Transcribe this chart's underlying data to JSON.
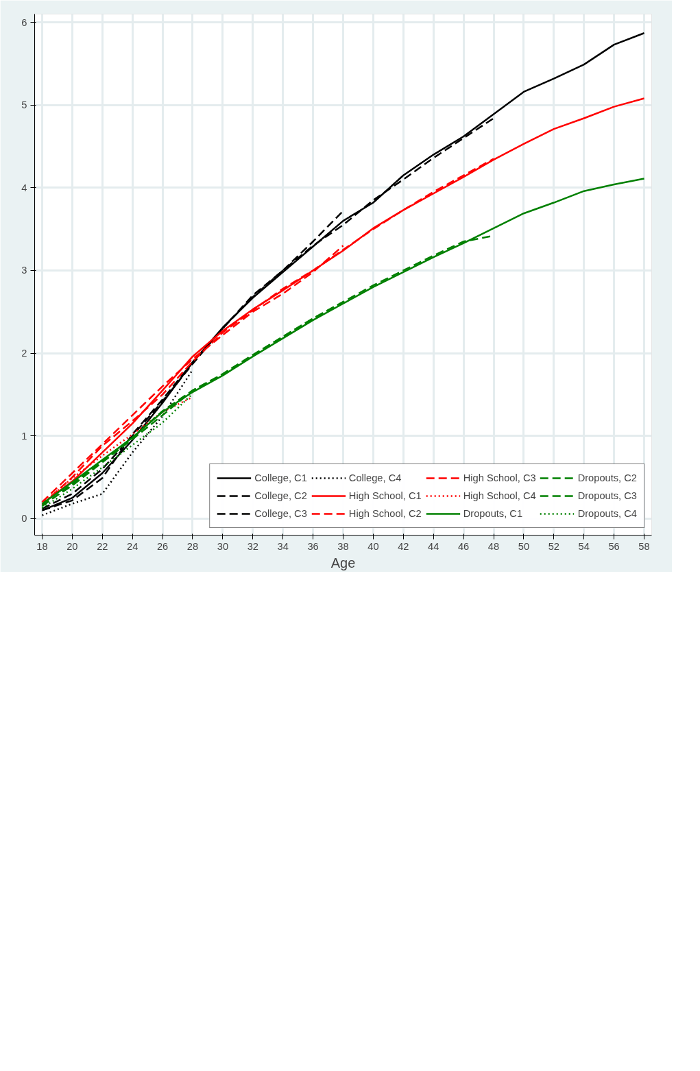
{
  "chart_data": {
    "type": "line",
    "xlabel": "Age",
    "xlim": [
      17.5,
      58.5
    ],
    "ylim": [
      -0.2,
      6.1
    ],
    "xticks": [
      18,
      20,
      22,
      24,
      26,
      28,
      30,
      32,
      34,
      36,
      38,
      40,
      42,
      44,
      46,
      48,
      50,
      52,
      54,
      56,
      58
    ],
    "yticks": [
      0,
      1,
      2,
      3,
      4,
      5,
      6
    ],
    "grid": true,
    "legend": "bottom right",
    "series": [
      {
        "name": "College, C1",
        "color": "#000000",
        "line_style": "solid",
        "x": [
          18,
          20,
          22,
          24,
          26,
          28,
          30,
          32,
          34,
          36,
          38,
          40,
          42,
          44,
          46,
          48,
          50,
          52,
          54,
          56,
          58
        ],
        "values": [
          0.1,
          0.25,
          0.55,
          0.95,
          1.4,
          1.89,
          2.31,
          2.67,
          2.98,
          3.29,
          3.6,
          3.82,
          4.15,
          4.4,
          4.62,
          4.89,
          5.16,
          5.32,
          5.49,
          5.73,
          5.87
        ]
      },
      {
        "name": "College, C2",
        "color": "#000000",
        "line_style": "dashed",
        "x": [
          18,
          20,
          22,
          24,
          26,
          28,
          30,
          32,
          34,
          36,
          38,
          40,
          42,
          44,
          46,
          48
        ],
        "values": [
          0.12,
          0.3,
          0.6,
          1.0,
          1.42,
          1.87,
          2.3,
          2.68,
          3.0,
          3.3,
          3.55,
          3.85,
          4.1,
          4.36,
          4.6,
          4.84
        ]
      },
      {
        "name": "College, C3",
        "color": "#000000",
        "line_style": "dashed",
        "x": [
          18,
          20,
          22,
          24,
          26,
          28,
          30,
          32,
          34,
          36,
          38
        ],
        "values": [
          0.1,
          0.22,
          0.49,
          1.02,
          1.44,
          1.89,
          2.3,
          2.7,
          3.0,
          3.35,
          3.72
        ]
      },
      {
        "name": "College, C4",
        "color": "#000000",
        "line_style": "dotted",
        "x": [
          18,
          20,
          22,
          24,
          26,
          28
        ],
        "values": [
          0.04,
          0.18,
          0.3,
          0.8,
          1.24,
          1.8
        ]
      },
      {
        "name": "High School, C1",
        "color": "#ff0000",
        "line_style": "solid",
        "x": [
          18,
          20,
          22,
          24,
          26,
          28,
          30,
          32,
          34,
          36,
          38,
          40,
          42,
          44,
          46,
          48,
          50,
          52,
          54,
          56,
          58
        ],
        "values": [
          0.18,
          0.45,
          0.8,
          1.15,
          1.55,
          1.96,
          2.27,
          2.53,
          2.76,
          3.0,
          3.24,
          3.51,
          3.73,
          3.93,
          4.13,
          4.34,
          4.53,
          4.71,
          4.84,
          4.98,
          5.08
        ]
      },
      {
        "name": "High School, C2",
        "color": "#ff0000",
        "line_style": "dashed",
        "x": [
          18,
          20,
          22,
          24,
          26,
          28,
          30,
          32,
          34,
          36,
          38,
          40,
          42,
          44,
          46,
          48
        ],
        "values": [
          0.17,
          0.5,
          0.88,
          1.18,
          1.5,
          1.9,
          2.25,
          2.52,
          2.78,
          3.0,
          3.25,
          3.5,
          3.73,
          3.95,
          4.15,
          4.35
        ]
      },
      {
        "name": "High School, C3",
        "color": "#ff0000",
        "line_style": "dashed",
        "x": [
          18,
          20,
          22,
          24,
          26,
          28,
          30,
          32,
          34,
          36,
          38
        ],
        "values": [
          0.2,
          0.55,
          0.9,
          1.25,
          1.6,
          1.93,
          2.22,
          2.5,
          2.72,
          2.98,
          3.3
        ]
      },
      {
        "name": "High School, C4",
        "color": "#ff0000",
        "line_style": "dotted",
        "x": [
          18,
          20,
          22,
          24,
          26,
          28
        ],
        "values": [
          0.18,
          0.49,
          0.76,
          1.02,
          1.29,
          1.47
        ]
      },
      {
        "name": "Dropouts, C1",
        "color": "#008000",
        "line_style": "solid",
        "x": [
          18,
          20,
          22,
          24,
          26,
          28,
          30,
          32,
          34,
          36,
          38,
          40,
          42,
          44,
          46,
          48,
          50,
          52,
          54,
          56,
          58
        ],
        "values": [
          0.18,
          0.44,
          0.71,
          0.98,
          1.29,
          1.53,
          1.73,
          1.96,
          2.18,
          2.4,
          2.6,
          2.8,
          2.98,
          3.16,
          3.33,
          3.51,
          3.69,
          3.82,
          3.96,
          4.04,
          4.11
        ]
      },
      {
        "name": "Dropouts, C2",
        "color": "#008000",
        "line_style": "dashed",
        "x": [
          18,
          20,
          22,
          24,
          26,
          28,
          30,
          32,
          34,
          36,
          38,
          40,
          42,
          44,
          46,
          48
        ],
        "values": [
          0.15,
          0.42,
          0.7,
          0.98,
          1.3,
          1.55,
          1.75,
          1.98,
          2.2,
          2.42,
          2.62,
          2.82,
          3.0,
          3.18,
          3.35,
          3.42
        ]
      },
      {
        "name": "Dropouts, C3",
        "color": "#008000",
        "line_style": "dashed",
        "x": [
          18,
          20,
          22,
          24,
          26,
          28,
          30,
          32,
          34,
          36,
          38
        ],
        "values": [
          0.16,
          0.4,
          0.68,
          0.96,
          1.25,
          1.55,
          1.74,
          1.97,
          2.2,
          2.42,
          2.62
        ]
      },
      {
        "name": "Dropouts, C4",
        "color": "#008000",
        "line_style": "dotted",
        "x": [
          18,
          20,
          22,
          24,
          26,
          28
        ],
        "values": [
          0.13,
          0.36,
          0.62,
          0.89,
          1.16,
          1.51
        ]
      }
    ]
  }
}
